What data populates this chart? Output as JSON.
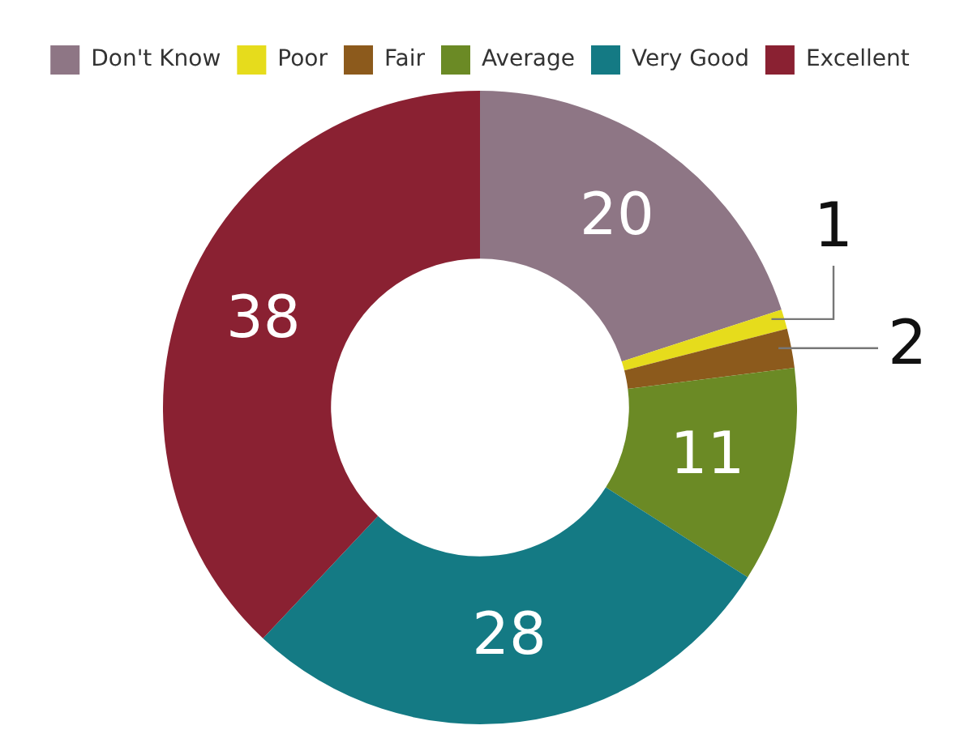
{
  "chart_data": {
    "type": "donut",
    "categories": [
      "Don't Know",
      "Poor",
      "Fair",
      "Average",
      "Very Good",
      "Excellent"
    ],
    "values": [
      20,
      1,
      2,
      11,
      28,
      38
    ],
    "colors": [
      "#8e7685",
      "#e6dc1c",
      "#8c5a1c",
      "#6b8a25",
      "#147a84",
      "#8a2132"
    ],
    "data_labels": true,
    "legend": "top"
  }
}
